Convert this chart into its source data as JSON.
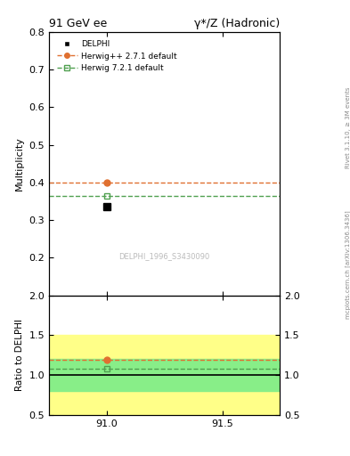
{
  "title_left": "91 GeV ee",
  "title_right": "γ*/Z (Hadronic)",
  "right_label_top": "Rivet 3.1.10, ≥ 3M events",
  "right_label_bot": "mcplots.cern.ch [arXiv:1306.3436]",
  "watermark": "DELPHI_1996_S3430090",
  "ylabel_main": "Multiplicity",
  "ylabel_ratio": "Ratio to DELPHI",
  "xlim": [
    90.75,
    91.75
  ],
  "ylim_main": [
    0.1,
    0.8
  ],
  "ylim_ratio": [
    0.5,
    2.0
  ],
  "yticks_main": [
    0.2,
    0.3,
    0.4,
    0.5,
    0.6,
    0.7,
    0.8
  ],
  "yticks_ratio": [
    0.5,
    1.0,
    1.5,
    2.0
  ],
  "xticks": [
    91.0,
    91.5
  ],
  "data_x": 91.0,
  "data_y": 0.336,
  "data_color": "#000000",
  "herwig1_y": 0.4,
  "herwig1_color": "#e07030",
  "herwig1_label": "Herwig++ 2.7.1 default",
  "herwig2_y": 0.363,
  "herwig2_color": "#50a050",
  "herwig2_label": "Herwig 7.2.1 default",
  "ratio_herwig1": 1.19,
  "ratio_herwig2": 1.08,
  "band_yellow_lo": 0.5,
  "band_yellow_hi": 1.5,
  "band_green_lo": 0.8,
  "band_green_hi": 1.2,
  "band_yellow_color": "#ffff88",
  "band_green_color": "#88ee88",
  "legend_label_data": "DELPHI"
}
